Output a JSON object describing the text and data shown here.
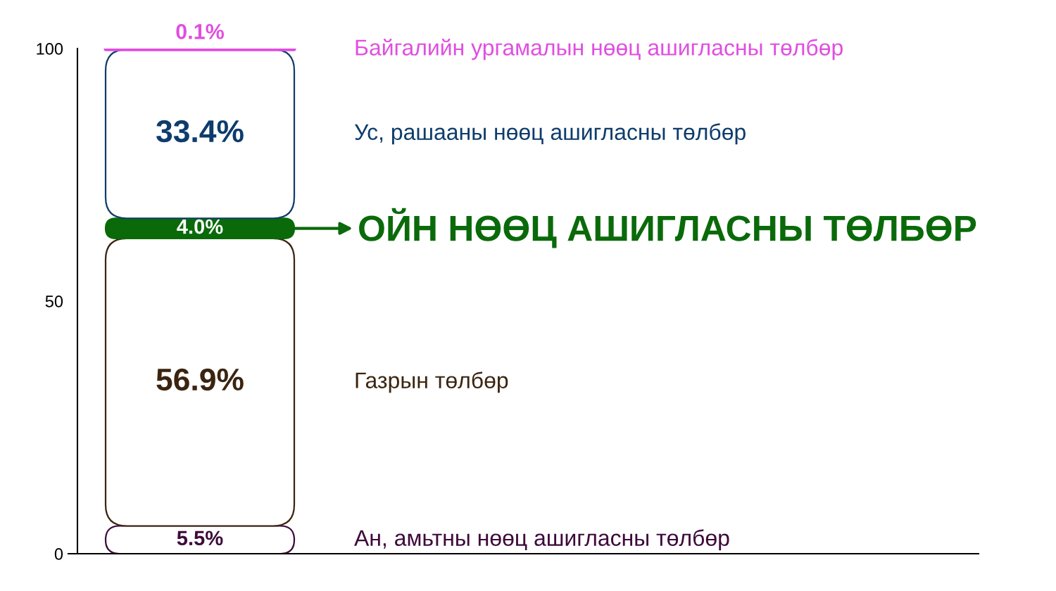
{
  "chart_data": {
    "type": "bar",
    "stacked": true,
    "categories": [
      null
    ],
    "ylim": [
      0,
      100
    ],
    "yticks": [
      0,
      50,
      100
    ],
    "series": [
      {
        "name": "Ан, амьтны нөөц ашигласны төлбөр",
        "color": "#3d0a3a",
        "values": [
          5.5
        ],
        "value_labels": [
          "5.5%"
        ]
      },
      {
        "name": "Газрын төлбөр",
        "color": "#3b2510",
        "values": [
          56.9
        ],
        "value_labels": [
          "56.9%"
        ]
      },
      {
        "name": "ОЙН НӨӨЦ АШИГЛАСНЫ ТӨЛБӨР",
        "color": "#0a6a0a",
        "values": [
          4.0
        ],
        "value_labels": [
          "4.0%"
        ]
      },
      {
        "name": "Ус, рашааны нөөц ашигласны төлбөр",
        "color": "#0e3c6c",
        "values": [
          33.4
        ],
        "value_labels": [
          "33.4%"
        ]
      },
      {
        "name": "Байгалийн ургамалын нөөц ашигласны төлбөр",
        "color": "#e04ee0",
        "values": [
          0.1
        ],
        "value_labels": [
          "0.1%"
        ]
      }
    ]
  }
}
